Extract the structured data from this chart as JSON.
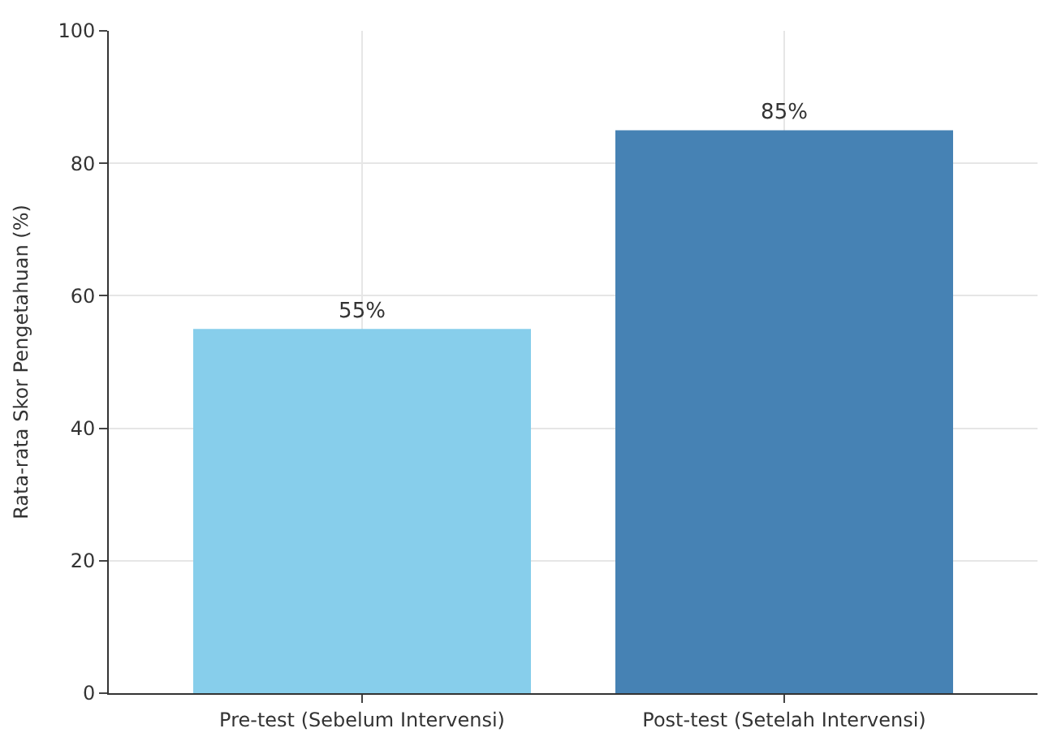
{
  "chart_data": {
    "type": "bar",
    "ylabel": "Rata-rata Skor Pengetahuan (%)",
    "categories": [
      "Pre-test (Sebelum Intervensi)",
      "Post-test (Setelah Intervensi)"
    ],
    "values": [
      55,
      85
    ],
    "colors": [
      "#87ceeb",
      "#4682b4"
    ],
    "value_labels": [
      "55%",
      "85%"
    ],
    "ylim": [
      0,
      100
    ],
    "yticks": [
      0,
      20,
      40,
      60,
      80,
      100
    ],
    "grid": true
  }
}
